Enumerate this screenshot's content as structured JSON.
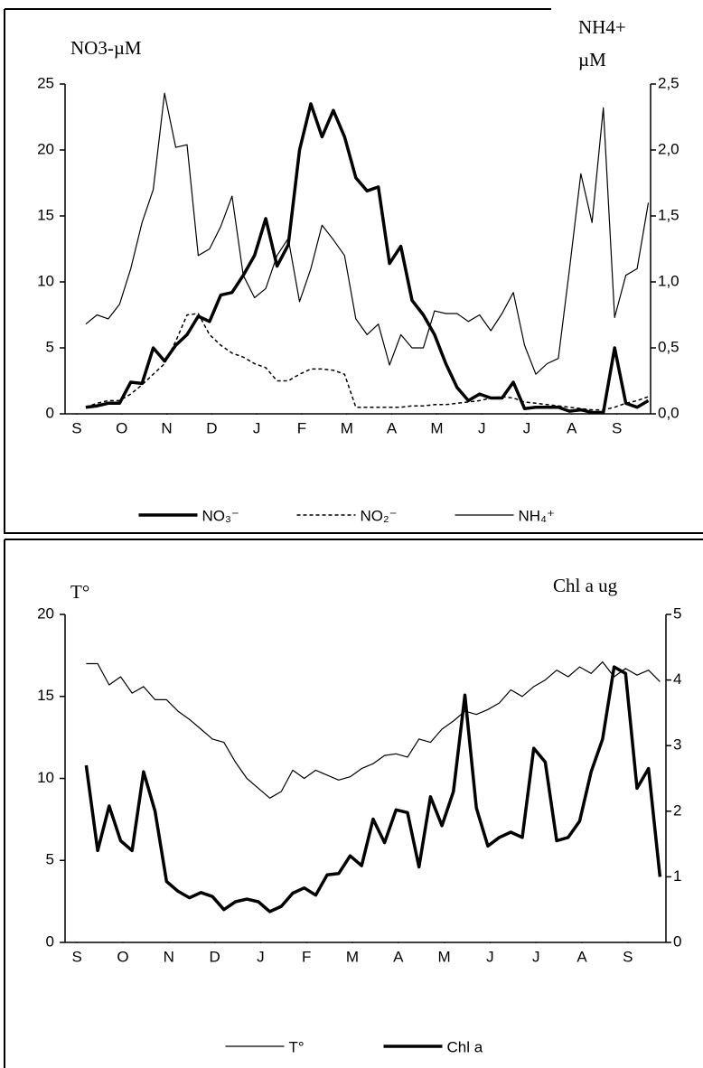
{
  "chart_data": [
    {
      "type": "line",
      "ylabel": "NO3-µM",
      "y2label": [
        "NH4+",
        "µM"
      ],
      "x": [
        0.2,
        0.45,
        0.7,
        0.95,
        1.2,
        1.45,
        1.7,
        1.95,
        2.2,
        2.45,
        2.7,
        2.95,
        3.2,
        3.45,
        3.7,
        3.95,
        4.2,
        4.45,
        4.7,
        4.95,
        5.2,
        5.45,
        5.7,
        5.95,
        6.2,
        6.45,
        6.7,
        6.95,
        7.2,
        7.45,
        7.7,
        7.95,
        8.2,
        8.45,
        8.7,
        8.95,
        9.2,
        9.45,
        9.7,
        9.95,
        10.2,
        10.45,
        10.7,
        10.95,
        11.2,
        11.45,
        11.7,
        11.95,
        12.2,
        12.45,
        12.7
      ],
      "xlim": [
        -0.26,
        12.75
      ],
      "xticks": [
        {
          "value": 0,
          "label": "S"
        },
        {
          "value": 1,
          "label": "O"
        },
        {
          "value": 2,
          "label": "N"
        },
        {
          "value": 3,
          "label": "D"
        },
        {
          "value": 4,
          "label": "J"
        },
        {
          "value": 5,
          "label": "F"
        },
        {
          "value": 6,
          "label": "M"
        },
        {
          "value": 7,
          "label": "A"
        },
        {
          "value": 8,
          "label": "M"
        },
        {
          "value": 9,
          "label": "J"
        },
        {
          "value": 10,
          "label": "J"
        },
        {
          "value": 11,
          "label": "A"
        },
        {
          "value": 12,
          "label": "S"
        }
      ],
      "ylim": [
        0,
        25
      ],
      "yticks": [
        0,
        5,
        10,
        15,
        20,
        25
      ],
      "y2lim": [
        0,
        2.5
      ],
      "y2ticks": [
        {
          "value": 0,
          "label": "0,0"
        },
        {
          "value": 0.5,
          "label": "0,5"
        },
        {
          "value": 1,
          "label": "1,0"
        },
        {
          "value": 1.5,
          "label": "1,5"
        },
        {
          "value": 2,
          "label": "2,0"
        },
        {
          "value": 2.5,
          "label": "2,5"
        }
      ],
      "grid": false,
      "legend": "bottom",
      "series": [
        {
          "name": "NO₃⁻",
          "color": "#000000",
          "width": 3.5,
          "dash": false,
          "values": [
            0.5,
            0.6,
            0.8,
            0.8,
            2.4,
            2.3,
            5.0,
            4.0,
            5.2,
            6.0,
            7.4,
            7.0,
            9.0,
            9.2,
            10.5,
            12.0,
            14.8,
            11.2,
            12.8,
            20.0,
            23.5,
            21.0,
            23.0,
            21.0,
            17.9,
            16.9,
            17.2,
            11.4,
            12.7,
            8.6,
            7.5,
            6.0,
            3.8,
            2.0,
            1.0,
            1.5,
            1.2,
            1.2,
            2.4,
            0.4,
            0.5,
            0.5,
            0.5,
            0.2,
            0.3,
            0.1,
            0.1,
            5.0,
            0.8,
            0.5,
            1.0
          ]
        },
        {
          "name": "NO₂⁻",
          "color": "#000000",
          "width": 1.5,
          "dash": true,
          "values": [
            0.5,
            0.8,
            1.0,
            1.0,
            1.5,
            2.2,
            3.0,
            3.8,
            5.5,
            7.5,
            7.6,
            6.0,
            5.2,
            4.6,
            4.3,
            3.8,
            3.5,
            2.5,
            2.5,
            3.0,
            3.4,
            3.4,
            3.3,
            3.0,
            0.5,
            0.5,
            0.5,
            0.5,
            0.5,
            0.6,
            0.6,
            0.7,
            0.7,
            0.8,
            0.9,
            1.0,
            1.2,
            1.3,
            1.2,
            0.9,
            0.8,
            0.7,
            0.6,
            0.5,
            0.4,
            0.3,
            0.3,
            0.5,
            0.8,
            1.0,
            1.3
          ]
        },
        {
          "name": "NH₄⁺",
          "color": "#000000",
          "width": 1.2,
          "dash": false,
          "axis": "y2",
          "values": [
            0.68,
            0.75,
            0.72,
            0.83,
            1.1,
            1.45,
            1.7,
            2.43,
            2.02,
            2.04,
            1.2,
            1.25,
            1.42,
            1.65,
            1.05,
            0.88,
            0.95,
            1.2,
            1.33,
            0.85,
            1.1,
            1.43,
            1.32,
            1.2,
            0.72,
            0.6,
            0.68,
            0.37,
            0.6,
            0.5,
            0.5,
            0.78,
            0.76,
            0.76,
            0.7,
            0.75,
            0.63,
            0.76,
            0.92,
            0.52,
            0.3,
            0.38,
            0.42,
            1.1,
            1.82,
            1.45,
            2.32,
            0.73,
            1.05,
            1.1,
            1.6
          ]
        }
      ]
    },
    {
      "type": "line",
      "ylabel": "T°",
      "y2label": [
        "Chl a ug"
      ],
      "x": [
        0.2,
        0.45,
        0.7,
        0.95,
        1.2,
        1.45,
        1.7,
        1.95,
        2.2,
        2.45,
        2.7,
        2.95,
        3.2,
        3.45,
        3.7,
        3.95,
        4.2,
        4.45,
        4.7,
        4.95,
        5.2,
        5.45,
        5.7,
        5.95,
        6.2,
        6.45,
        6.7,
        6.95,
        7.2,
        7.45,
        7.7,
        7.95,
        8.2,
        8.45,
        8.7,
        8.95,
        9.2,
        9.45,
        9.7,
        9.95,
        10.2,
        10.45,
        10.7,
        10.95,
        11.2,
        11.45,
        11.7,
        11.95,
        12.2,
        12.45,
        12.7
      ],
      "xlim": [
        -0.26,
        12.83
      ],
      "xticks": [
        {
          "value": 0,
          "label": "S"
        },
        {
          "value": 1,
          "label": "O"
        },
        {
          "value": 2,
          "label": "N"
        },
        {
          "value": 3,
          "label": "D"
        },
        {
          "value": 4,
          "label": "J"
        },
        {
          "value": 5,
          "label": "F"
        },
        {
          "value": 6,
          "label": "M"
        },
        {
          "value": 7,
          "label": "A"
        },
        {
          "value": 8,
          "label": "M"
        },
        {
          "value": 9,
          "label": "J"
        },
        {
          "value": 10,
          "label": "J"
        },
        {
          "value": 11,
          "label": "A"
        },
        {
          "value": 12,
          "label": "S"
        }
      ],
      "ylim": [
        0,
        20
      ],
      "yticks": [
        0,
        5,
        10,
        15,
        20
      ],
      "y2lim": [
        0,
        5
      ],
      "y2ticks": [
        0,
        1,
        2,
        3,
        4,
        5
      ],
      "grid": false,
      "legend": "bottom",
      "series": [
        {
          "name": "T°",
          "color": "#000000",
          "width": 1.2,
          "dash": false,
          "values": [
            17,
            17,
            15.7,
            16.2,
            15.2,
            15.6,
            14.8,
            14.8,
            14.1,
            13.6,
            13.0,
            12.4,
            12.2,
            11.0,
            10.0,
            9.4,
            8.8,
            9.2,
            10.5,
            10.0,
            10.5,
            10.2,
            9.9,
            10.1,
            10.6,
            10.9,
            11.4,
            11.5,
            11.3,
            12.4,
            12.2,
            13.0,
            13.5,
            14.1,
            13.9,
            14.2,
            14.6,
            15.4,
            15.0,
            15.6,
            16.0,
            16.6,
            16.2,
            16.8,
            16.4,
            17.1,
            16.2,
            16.7,
            16.3,
            16.6,
            15.9
          ]
        },
        {
          "name": "Chl a",
          "color": "#000000",
          "width": 3.5,
          "dash": false,
          "axis": "y2",
          "values": [
            2.7,
            1.4,
            2.08,
            1.55,
            1.4,
            2.6,
            2.0,
            0.93,
            0.78,
            0.68,
            0.76,
            0.7,
            0.5,
            0.62,
            0.66,
            0.62,
            0.47,
            0.55,
            0.75,
            0.83,
            0.72,
            1.03,
            1.05,
            1.32,
            1.17,
            1.88,
            1.52,
            2.02,
            1.98,
            1.15,
            2.22,
            1.78,
            2.3,
            3.77,
            2.05,
            1.47,
            1.6,
            1.68,
            1.6,
            2.96,
            2.75,
            1.55,
            1.6,
            1.85,
            2.6,
            3.1,
            4.2,
            4.1,
            2.35,
            2.65,
            1.0
          ]
        }
      ]
    }
  ]
}
